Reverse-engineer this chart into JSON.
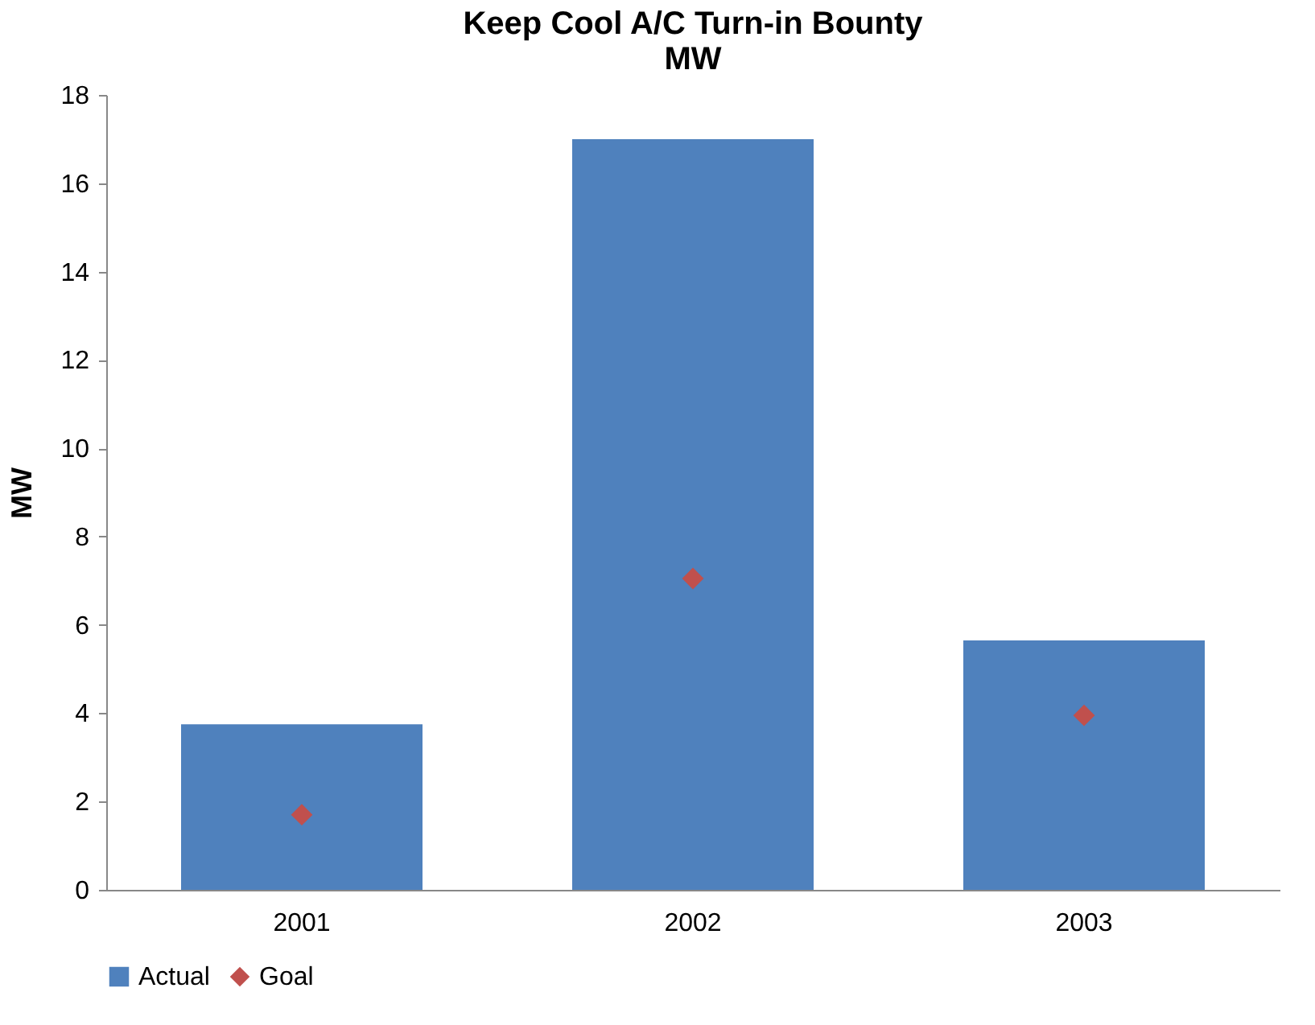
{
  "chart_data": {
    "type": "bar",
    "title": [
      "Keep Cool A/C Turn-in Bounty",
      "MW"
    ],
    "ylabel": "MW",
    "categories": [
      "2001",
      "2002",
      "2003"
    ],
    "series": [
      {
        "name": "Actual",
        "color": "#4f81bd",
        "values": [
          3.75,
          17.0,
          5.65
        ]
      },
      {
        "name": "Goal",
        "type": "scatter",
        "marker": "diamond",
        "color": "#c0504d",
        "values": [
          1.7,
          7.05,
          3.95
        ]
      }
    ],
    "ylim": [
      0,
      18
    ],
    "yticks": [
      0,
      2,
      4,
      6,
      8,
      10,
      12,
      14,
      16,
      18
    ],
    "grid": false,
    "legend": "bottom"
  }
}
